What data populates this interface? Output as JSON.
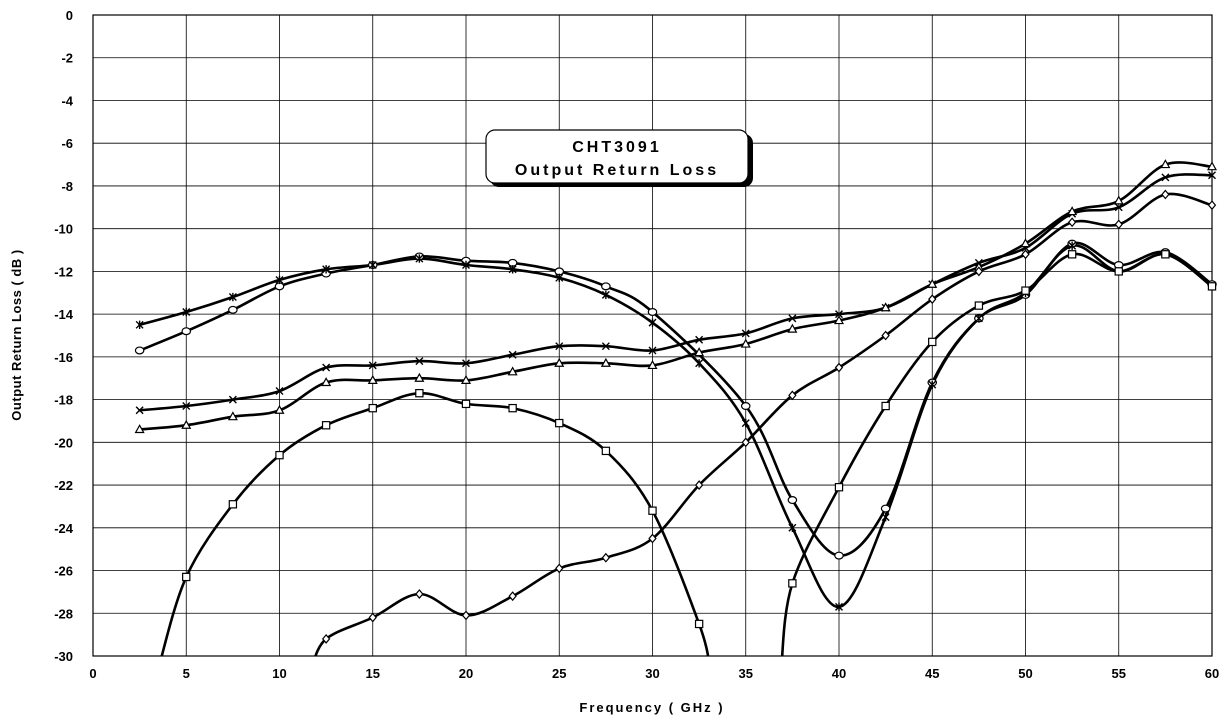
{
  "chart_data": {
    "type": "line",
    "title_lines": [
      "CHT3091",
      "Output Return Loss"
    ],
    "xlabel": "Frequency ( GHz )",
    "ylabel": "Output Return Loss ( dB )",
    "xlim": [
      0,
      60
    ],
    "ylim": [
      -30,
      0
    ],
    "xticks": [
      0,
      5,
      10,
      15,
      20,
      25,
      30,
      35,
      40,
      45,
      50,
      55,
      60
    ],
    "yticks": [
      0,
      -2,
      -4,
      -6,
      -8,
      -10,
      -12,
      -14,
      -16,
      -18,
      -20,
      -22,
      -24,
      -26,
      -28,
      -30
    ],
    "grid": true,
    "series": [
      {
        "marker": "circle",
        "x": [
          2.5,
          5,
          7.5,
          10,
          12.5,
          15,
          17.5,
          20,
          22.5,
          25,
          27.5,
          30,
          35,
          37.5,
          40,
          42.5,
          45,
          47.5,
          50,
          52.5,
          55,
          57.5,
          60
        ],
        "y": [
          -15.7,
          -14.8,
          -13.8,
          -12.7,
          -12.1,
          -11.7,
          -11.3,
          -11.5,
          -11.6,
          -12.0,
          -12.7,
          -13.9,
          -18.3,
          -22.7,
          -25.3,
          -23.1,
          -17.2,
          -14.2,
          -13.1,
          -10.7,
          -11.7,
          -11.1,
          -12.6
        ]
      },
      {
        "marker": "asterisk",
        "x": [
          2.5,
          5,
          7.5,
          10,
          12.5,
          15,
          17.5,
          20,
          22.5,
          25,
          27.5,
          30,
          32.5,
          35,
          37.5,
          40,
          42.5,
          45,
          47.5,
          50,
          52.5,
          55,
          57.5,
          60
        ],
        "y": [
          -14.5,
          -13.9,
          -13.2,
          -12.4,
          -11.9,
          -11.7,
          -11.4,
          -11.7,
          -11.9,
          -12.3,
          -13.1,
          -14.4,
          -16.3,
          -19.1,
          -24.0,
          -27.7,
          -23.5,
          -17.3,
          -14.2,
          -13.0,
          -10.8,
          -12.0,
          -11.2,
          -12.7
        ]
      },
      {
        "marker": "x",
        "x": [
          2.5,
          5,
          7.5,
          10,
          12.5,
          15,
          17.5,
          20,
          22.5,
          25,
          27.5,
          30,
          32.5,
          35,
          37.5,
          40,
          42.5,
          45,
          47.5,
          50,
          52.5,
          55,
          57.5,
          60
        ],
        "y": [
          -18.5,
          -18.3,
          -18.0,
          -17.6,
          -16.5,
          -16.4,
          -16.2,
          -16.3,
          -15.9,
          -15.5,
          -15.5,
          -15.7,
          -15.2,
          -14.9,
          -14.2,
          -14.0,
          -13.7,
          -12.6,
          -11.6,
          -10.9,
          -9.3,
          -9.0,
          -7.6,
          -7.5
        ]
      },
      {
        "marker": "triangle",
        "x": [
          2.5,
          5,
          7.5,
          10,
          12.5,
          15,
          17.5,
          20,
          22.5,
          25,
          27.5,
          30,
          32.5,
          35,
          37.5,
          40,
          42.5,
          45,
          47.5,
          50,
          52.5,
          55,
          57.5,
          60
        ],
        "y": [
          -19.4,
          -19.2,
          -18.8,
          -18.5,
          -17.2,
          -17.1,
          -17.0,
          -17.1,
          -16.7,
          -16.3,
          -16.3,
          -16.4,
          -15.8,
          -15.4,
          -14.7,
          -14.3,
          -13.7,
          -12.6,
          -11.8,
          -10.7,
          -9.2,
          -8.7,
          -7.0,
          -7.1
        ]
      },
      {
        "marker": "diamond",
        "x": [
          12.5,
          15,
          17.5,
          20,
          22.5,
          25,
          27.5,
          30,
          32.5,
          35,
          37.5,
          40,
          42.5,
          45,
          47.5,
          50,
          52.5,
          55,
          57.5,
          60
        ],
        "y": [
          -29.2,
          -28.2,
          -27.1,
          -28.1,
          -27.2,
          -25.9,
          -25.4,
          -24.5,
          -22.0,
          -20.0,
          -17.8,
          -16.5,
          -15.0,
          -13.3,
          -12.0,
          -11.2,
          -9.7,
          -9.8,
          -8.4,
          -8.9
        ]
      },
      {
        "marker": "square",
        "x": [
          5,
          7.5,
          10,
          12.5,
          15,
          17.5,
          20,
          22.5,
          25,
          27.5,
          30,
          32.5,
          37.5,
          40,
          42.5,
          45,
          47.5,
          50,
          52.5,
          55,
          57.5,
          60
        ],
        "y": [
          -26.3,
          -22.9,
          -20.6,
          -19.2,
          -18.4,
          -17.7,
          -18.2,
          -18.4,
          -19.1,
          -20.4,
          -23.2,
          -28.5,
          -26.6,
          -22.1,
          -18.3,
          -15.3,
          -13.6,
          -12.9,
          -11.2,
          -12.0,
          -11.2,
          -12.7
        ]
      }
    ]
  }
}
